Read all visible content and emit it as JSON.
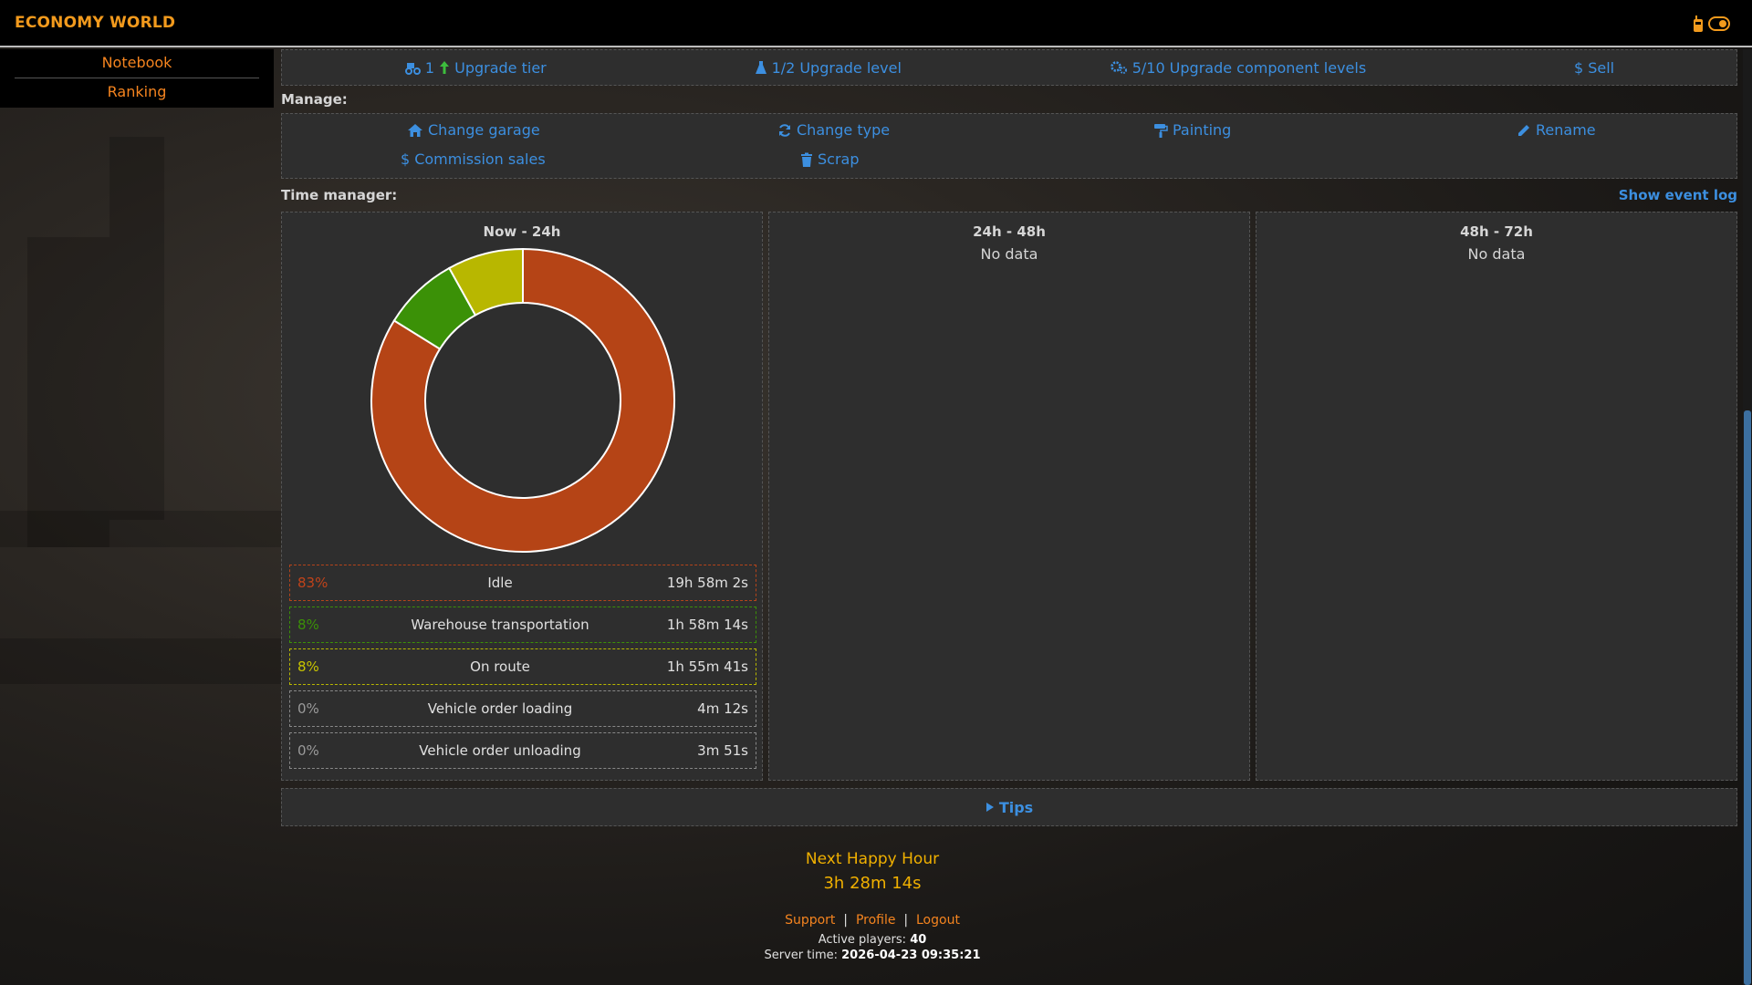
{
  "app": {
    "brand": "ECONOMY WORLD"
  },
  "sidebar": {
    "items": [
      {
        "label": "Notebook"
      },
      {
        "label": "Ranking"
      }
    ]
  },
  "upgrades": {
    "tier_count": "1",
    "tier_label": "Upgrade tier",
    "level_count": "1/2",
    "level_label": "Upgrade level",
    "component_count": "5/10",
    "component_label": "Upgrade component levels",
    "sell_label": "Sell"
  },
  "manage": {
    "title": "Manage:",
    "change_garage": "Change garage",
    "change_type": "Change type",
    "painting": "Painting",
    "rename": "Rename",
    "commission_sales": "Commission sales",
    "scrap": "Scrap"
  },
  "time_manager": {
    "title": "Time manager:",
    "show_event_log": "Show event log",
    "columns": [
      {
        "title": "Now - 24h"
      },
      {
        "title": "24h - 48h",
        "subtitle": "No data"
      },
      {
        "title": "48h - 72h",
        "subtitle": "No data"
      }
    ]
  },
  "chart_data": {
    "type": "pie",
    "categories": [
      "Idle",
      "Warehouse transportation",
      "On route",
      "Vehicle order loading",
      "Vehicle order unloading"
    ],
    "values": [
      83,
      8,
      8,
      0,
      0
    ],
    "colors": [
      "#b54416",
      "#3b9107",
      "#b8b700",
      "#888888",
      "#888888"
    ],
    "legend": [
      {
        "pct": "83%",
        "label": "Idle",
        "duration": "19h 58m 2s",
        "color": "#c0431a",
        "border": "#b5441a"
      },
      {
        "pct": "8%",
        "label": "Warehouse transportation",
        "duration": "1h 58m 14s",
        "color": "#3b9107",
        "border": "#3b9107"
      },
      {
        "pct": "8%",
        "label": "On route",
        "duration": "1h 55m 41s",
        "color": "#c8c400",
        "border": "#b8b700"
      },
      {
        "pct": "0%",
        "label": "Vehicle order loading",
        "duration": "4m 12s",
        "color": "#9a9a9a",
        "border": "#888888"
      },
      {
        "pct": "0%",
        "label": "Vehicle order unloading",
        "duration": "3m 51s",
        "color": "#9a9a9a",
        "border": "#888888"
      }
    ]
  },
  "tips": {
    "label": "Tips"
  },
  "footer": {
    "happy_hour_title": "Next Happy Hour",
    "happy_hour_time": "3h 28m 14s",
    "links": [
      "Support",
      "Profile",
      "Logout"
    ],
    "active_players_label": "Active players:",
    "active_players": "40",
    "server_time_label": "Server time:",
    "server_time": "2026-04-23 09:35:21"
  }
}
